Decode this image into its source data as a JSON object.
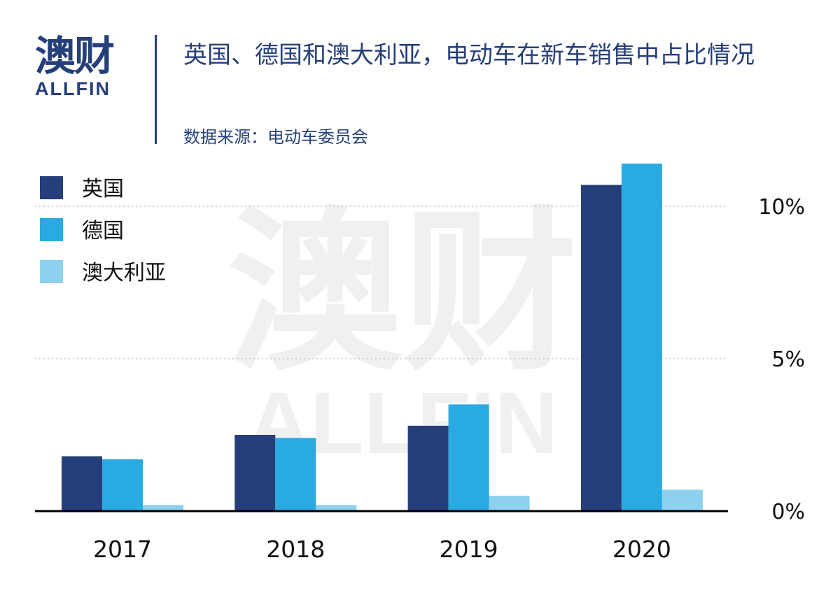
{
  "header": {
    "logo_cn": "澳财",
    "logo_en": "ALLFIN",
    "title": "英国、德国和澳大利亚，电动车在新车销售中占比情况",
    "source": "数据来源：电动车委员会"
  },
  "watermark": {
    "cn": "澳财",
    "en": "ALLFIN"
  },
  "chart_data": {
    "type": "bar",
    "title": "英国、德国和澳大利亚，电动车在新车销售中占比情况",
    "categories": [
      "2017",
      "2018",
      "2019",
      "2020"
    ],
    "series": [
      {
        "name": "英国",
        "color": "#253f7a",
        "values": [
          1.8,
          2.5,
          2.8,
          10.7
        ]
      },
      {
        "name": "德国",
        "color": "#29abe2",
        "values": [
          1.7,
          2.4,
          3.5,
          11.4
        ]
      },
      {
        "name": "澳大利亚",
        "color": "#8dd1ee",
        "values": [
          0.2,
          0.2,
          0.5,
          0.7
        ]
      }
    ],
    "ylim": [
      0,
      12
    ],
    "yticks": [
      0,
      5,
      10
    ],
    "ytick_labels": [
      "0%",
      "5%",
      "10%"
    ],
    "y_axis_position": "right",
    "grid": "dotted horizontal",
    "legend_position": "top-left",
    "xlabel": "",
    "ylabel": ""
  }
}
